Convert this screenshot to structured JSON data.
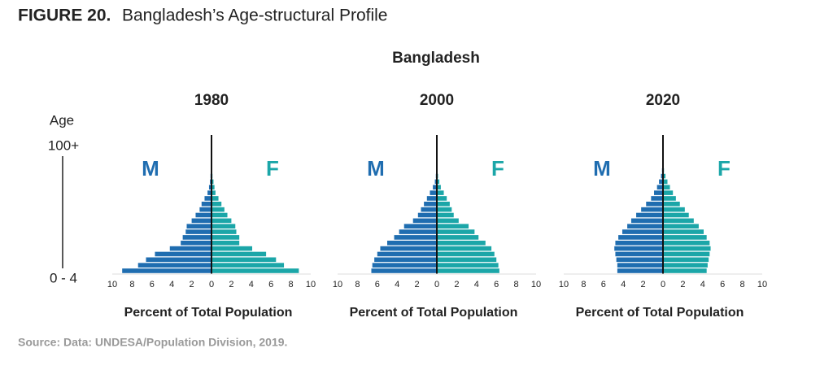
{
  "figure": {
    "label": "FIGURE 20.",
    "title": "Bangladesh’s Age-structural Profile"
  },
  "suptitle": "Bangladesh",
  "age_axis": {
    "label": "Age",
    "groups": [
      "0 - 4",
      null,
      null,
      null,
      null,
      null,
      null,
      null,
      null,
      null,
      null,
      null,
      null,
      null,
      null,
      null,
      null,
      null,
      null,
      null,
      "100+"
    ]
  },
  "source": "Source: Data: UNDESA/Population Division, 2019.",
  "chart_data": [
    {
      "type": "pyramid",
      "title": "1980",
      "xlabel": "Percent of Total Population",
      "xlim": [
        -10,
        10
      ],
      "xticks": [
        {
          "value": -10,
          "label": "10"
        },
        {
          "value": -8,
          "label": "8"
        },
        {
          "value": -6,
          "label": "6"
        },
        {
          "value": -4,
          "label": "4"
        },
        {
          "value": -2,
          "label": "2"
        },
        0,
        2,
        4,
        6,
        8,
        10
      ],
      "series": [
        {
          "name": "M",
          "color": "#1f6db0",
          "values": [
            9.0,
            7.4,
            6.6,
            5.7,
            4.2,
            3.1,
            2.9,
            2.6,
            2.5,
            2.0,
            1.6,
            1.2,
            1.0,
            0.7,
            0.4,
            0.25,
            0.15,
            0.1,
            0.05,
            0.02,
            0.01
          ]
        },
        {
          "name": "F",
          "color": "#1ba6a8",
          "values": [
            8.8,
            7.3,
            6.5,
            5.5,
            4.1,
            2.8,
            2.8,
            2.5,
            2.4,
            2.0,
            1.6,
            1.3,
            1.0,
            0.7,
            0.4,
            0.3,
            0.2,
            0.1,
            0.05,
            0.02,
            0.01
          ]
        }
      ]
    },
    {
      "type": "pyramid",
      "title": "2000",
      "xlabel": "Percent of Total Population",
      "xlim": [
        -10,
        10
      ],
      "xticks": [
        {
          "value": -10,
          "label": "10"
        },
        {
          "value": -8,
          "label": "8"
        },
        {
          "value": -6,
          "label": "6"
        },
        {
          "value": -4,
          "label": "4"
        },
        {
          "value": -2,
          "label": "2"
        },
        0,
        2,
        4,
        6,
        8,
        10
      ],
      "series": [
        {
          "name": "M",
          "color": "#1f6db0",
          "values": [
            6.6,
            6.5,
            6.3,
            6.0,
            5.7,
            5.0,
            4.3,
            3.8,
            3.3,
            2.4,
            1.9,
            1.6,
            1.3,
            1.0,
            0.7,
            0.4,
            0.2,
            0.1,
            0.05,
            0.02,
            0.01
          ]
        },
        {
          "name": "F",
          "color": "#1ba6a8",
          "values": [
            6.3,
            6.2,
            6.0,
            5.8,
            5.5,
            4.9,
            4.2,
            3.8,
            3.2,
            2.2,
            1.7,
            1.5,
            1.3,
            1.0,
            0.7,
            0.4,
            0.25,
            0.12,
            0.05,
            0.02,
            0.01
          ]
        }
      ]
    },
    {
      "type": "pyramid",
      "title": "2020",
      "xlabel": "Percent of Total Population",
      "xlim": [
        -10,
        10
      ],
      "xticks": [
        {
          "value": -10,
          "label": "10"
        },
        {
          "value": -8,
          "label": "8"
        },
        {
          "value": -6,
          "label": "6"
        },
        {
          "value": -4,
          "label": "4"
        },
        {
          "value": -2,
          "label": "2"
        },
        0,
        2,
        4,
        6,
        8,
        10
      ],
      "series": [
        {
          "name": "M",
          "color": "#1f6db0",
          "values": [
            4.6,
            4.6,
            4.7,
            4.8,
            4.9,
            4.8,
            4.5,
            4.1,
            3.6,
            3.2,
            2.7,
            2.2,
            1.7,
            1.2,
            0.9,
            0.6,
            0.4,
            0.2,
            0.1,
            0.04,
            0.01
          ]
        },
        {
          "name": "F",
          "color": "#1ba6a8",
          "values": [
            4.4,
            4.5,
            4.6,
            4.7,
            4.8,
            4.7,
            4.4,
            4.1,
            3.6,
            3.1,
            2.6,
            2.2,
            1.7,
            1.3,
            1.0,
            0.7,
            0.45,
            0.25,
            0.1,
            0.04,
            0.01
          ]
        }
      ]
    }
  ]
}
